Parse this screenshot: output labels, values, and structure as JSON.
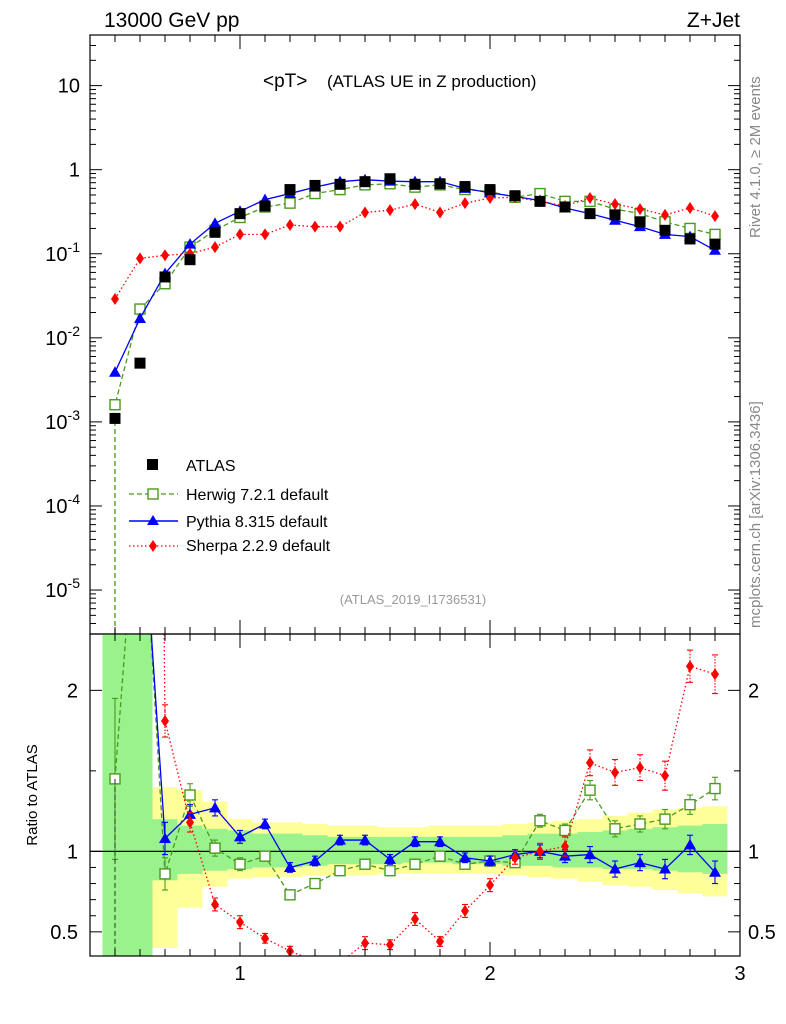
{
  "header": {
    "left": "13000 GeV pp",
    "right": "Z+Jet",
    "side_top": "Rivet 4.1.0, ≥ 2M events",
    "side_bottom": "mcplots.cern.ch [arXiv:1306.3436]"
  },
  "chart_data": {
    "type": "scatter",
    "title_main": "<pT>",
    "title_sub": "(ATLAS UE in Z production)",
    "reference": "(ATLAS_2019_I1736531)",
    "xlim": [
      0.4,
      3.0
    ],
    "ylim_main": [
      3e-06,
      40
    ],
    "yscale_main": "log",
    "ylim_ratio": [
      0.35,
      2.35
    ],
    "ylabel_ratio": "Ratio to ATLAS",
    "main_yticks": [
      {
        "value": 10,
        "label": "10"
      },
      {
        "value": 1,
        "label": "1"
      },
      {
        "value": 0.1,
        "label": "10^-1"
      },
      {
        "value": 0.01,
        "label": "10^-2"
      },
      {
        "value": 0.001,
        "label": "10^-3"
      },
      {
        "value": 0.0001,
        "label": "10^-4"
      },
      {
        "value": 1e-05,
        "label": "10^-5"
      }
    ],
    "ratio_yticks": [
      {
        "value": 0.5,
        "label": "0.5"
      },
      {
        "value": 1,
        "label": "1"
      },
      {
        "value": 2,
        "label": "2"
      }
    ],
    "xticks": [
      {
        "value": 1,
        "label": "1"
      },
      {
        "value": 2,
        "label": "2"
      },
      {
        "value": 3,
        "label": "3"
      }
    ],
    "x": [
      0.5,
      0.6,
      0.7,
      0.8,
      0.9,
      1.0,
      1.1,
      1.2,
      1.3,
      1.4,
      1.5,
      1.6,
      1.7,
      1.8,
      1.9,
      2.0,
      2.1,
      2.2,
      2.3,
      2.4,
      2.5,
      2.6,
      2.7,
      2.8,
      2.9
    ],
    "legend": [
      "ATLAS",
      "Herwig 7.2.1 default",
      "Pythia 8.315 default",
      "Sherpa 2.2.9 default"
    ],
    "series": [
      {
        "name": "ATLAS",
        "color": "#000000",
        "marker": "square",
        "values": [
          0.0011,
          0.005,
          0.053,
          0.085,
          0.18,
          0.3,
          0.37,
          0.58,
          0.65,
          0.67,
          0.72,
          0.78,
          0.67,
          0.68,
          0.63,
          0.58,
          0.49,
          0.42,
          0.36,
          0.3,
          0.29,
          0.24,
          0.19,
          0.15,
          0.13
        ],
        "ratio_band_inner": [
          [
            0.35,
            2.35
          ],
          [
            0.35,
            2.35
          ],
          [
            0.82,
            1.2
          ],
          [
            0.86,
            1.16
          ],
          [
            0.88,
            1.14
          ],
          [
            0.89,
            1.13
          ],
          [
            0.9,
            1.11
          ],
          [
            0.9,
            1.11
          ],
          [
            0.91,
            1.1
          ],
          [
            0.92,
            1.09
          ],
          [
            0.92,
            1.09
          ],
          [
            0.92,
            1.09
          ],
          [
            0.93,
            1.09
          ],
          [
            0.93,
            1.09
          ],
          [
            0.92,
            1.09
          ],
          [
            0.92,
            1.09
          ],
          [
            0.91,
            1.1
          ],
          [
            0.91,
            1.11
          ],
          [
            0.9,
            1.11
          ],
          [
            0.9,
            1.12
          ],
          [
            0.89,
            1.13
          ],
          [
            0.89,
            1.14
          ],
          [
            0.88,
            1.15
          ],
          [
            0.87,
            1.16
          ],
          [
            0.86,
            1.17
          ]
        ],
        "ratio_band_outer": [
          [
            0.35,
            2.35
          ],
          [
            0.35,
            2.35
          ],
          [
            0.4,
            1.4
          ],
          [
            0.65,
            1.38
          ],
          [
            0.78,
            1.31
          ],
          [
            0.83,
            1.2
          ],
          [
            0.84,
            1.18
          ],
          [
            0.84,
            1.18
          ],
          [
            0.85,
            1.17
          ],
          [
            0.85,
            1.16
          ],
          [
            0.85,
            1.16
          ],
          [
            0.86,
            1.15
          ],
          [
            0.86,
            1.15
          ],
          [
            0.86,
            1.16
          ],
          [
            0.86,
            1.16
          ],
          [
            0.86,
            1.16
          ],
          [
            0.85,
            1.17
          ],
          [
            0.84,
            1.18
          ],
          [
            0.83,
            1.19
          ],
          [
            0.81,
            1.2
          ],
          [
            0.79,
            1.22
          ],
          [
            0.78,
            1.24
          ],
          [
            0.76,
            1.26
          ],
          [
            0.74,
            1.27
          ],
          [
            0.72,
            1.28
          ]
        ]
      },
      {
        "name": "Herwig 7.2.1 default",
        "color": "#4a9a1e",
        "marker": "open-square",
        "line": "dashed",
        "values": [
          0.0016,
          0.022,
          0.044,
          0.12,
          0.19,
          0.27,
          0.36,
          0.4,
          0.52,
          0.58,
          0.66,
          0.68,
          0.62,
          0.66,
          0.58,
          0.55,
          0.47,
          0.52,
          0.42,
          0.42,
          0.34,
          0.3,
          0.24,
          0.2,
          0.17
        ],
        "ratio": [
          1.45,
          3.5,
          0.86,
          1.35,
          1.02,
          0.92,
          0.97,
          0.73,
          0.8,
          0.88,
          0.92,
          0.88,
          0.92,
          0.97,
          0.92,
          0.94,
          0.93,
          1.19,
          1.13,
          1.38,
          1.14,
          1.17,
          1.2,
          1.29,
          1.39
        ],
        "ratio_err": [
          0.5,
          0,
          0.1,
          0.07,
          0.05,
          0.04,
          0.03,
          0.03,
          0.03,
          0.03,
          0.03,
          0.03,
          0.03,
          0.03,
          0.03,
          0.03,
          0.03,
          0.04,
          0.04,
          0.06,
          0.05,
          0.05,
          0.06,
          0.06,
          0.07
        ]
      },
      {
        "name": "Pythia 8.315 default",
        "color": "#0000ff",
        "marker": "triangle",
        "line": "solid",
        "values": [
          0.0039,
          0.017,
          0.058,
          0.13,
          0.23,
          0.32,
          0.44,
          0.52,
          0.62,
          0.72,
          0.76,
          0.73,
          0.72,
          0.72,
          0.6,
          0.53,
          0.48,
          0.43,
          0.35,
          0.3,
          0.25,
          0.21,
          0.17,
          0.16,
          0.11
        ],
        "ratio": [
          3.6,
          3.4,
          1.08,
          1.23,
          1.27,
          1.09,
          1.17,
          0.9,
          0.94,
          1.07,
          1.07,
          0.95,
          1.06,
          1.06,
          0.96,
          0.94,
          0.98,
          1.0,
          0.97,
          0.98,
          0.89,
          0.93,
          0.89,
          1.04,
          0.87
        ],
        "ratio_err": [
          0.5,
          0,
          0.1,
          0.06,
          0.05,
          0.04,
          0.03,
          0.03,
          0.03,
          0.03,
          0.03,
          0.03,
          0.03,
          0.03,
          0.03,
          0.03,
          0.03,
          0.04,
          0.04,
          0.05,
          0.05,
          0.05,
          0.06,
          0.06,
          0.07
        ]
      },
      {
        "name": "Sherpa 2.2.9 default",
        "color": "#ff0000",
        "marker": "diamond",
        "line": "dotted",
        "values": [
          0.029,
          0.088,
          0.096,
          0.1,
          0.12,
          0.17,
          0.17,
          0.22,
          0.21,
          0.21,
          0.31,
          0.33,
          0.39,
          0.31,
          0.4,
          0.46,
          0.47,
          0.42,
          0.37,
          0.46,
          0.39,
          0.34,
          0.29,
          0.35,
          0.28
        ],
        "ratio": [
          26,
          17.6,
          1.81,
          1.18,
          0.67,
          0.56,
          0.46,
          0.38,
          0.32,
          0.31,
          0.43,
          0.42,
          0.58,
          0.44,
          0.63,
          0.79,
          0.96,
          1.0,
          1.03,
          1.55,
          1.49,
          1.52,
          1.47,
          2.15,
          2.1
        ],
        "ratio_err": [
          0,
          0,
          0.1,
          0.06,
          0.04,
          0.04,
          0.03,
          0.03,
          0.03,
          0.03,
          0.04,
          0.03,
          0.04,
          0.03,
          0.04,
          0.04,
          0.04,
          0.05,
          0.06,
          0.08,
          0.08,
          0.08,
          0.09,
          0.1,
          0.12
        ]
      }
    ]
  }
}
